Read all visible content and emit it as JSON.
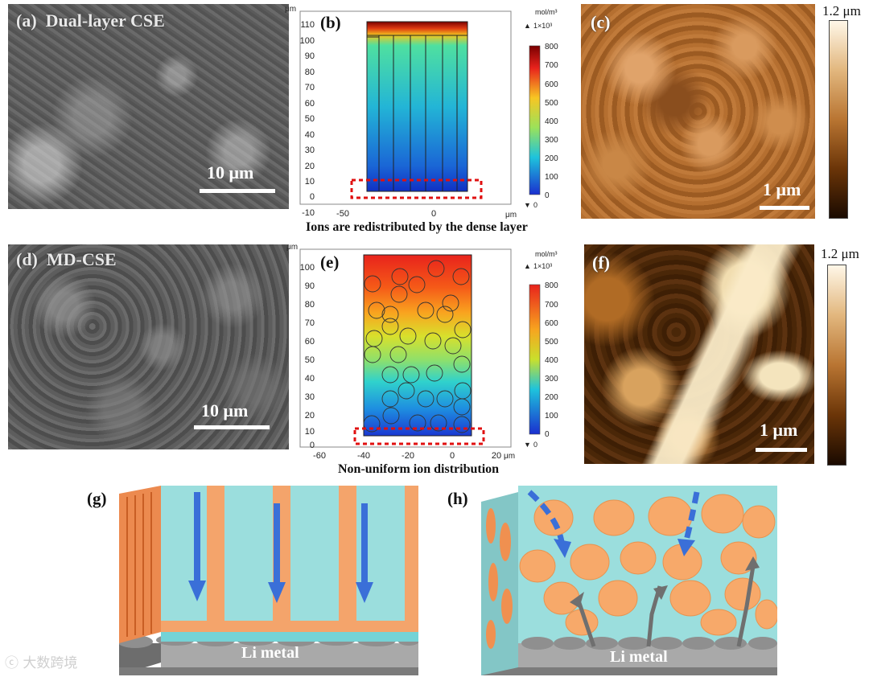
{
  "panels": {
    "a": {
      "label": "(a)",
      "title": "Dual-layer CSE",
      "scale": "10 μm"
    },
    "b": {
      "label": "(b)",
      "caption": "Ions are redistributed by the dense layer",
      "y_unit": "μm",
      "x_unit": "μm",
      "y_ticks": [
        "110",
        "100",
        "90",
        "80",
        "70",
        "60",
        "50",
        "40",
        "30",
        "20",
        "10",
        "0",
        "-10"
      ],
      "x_ticks": [
        "-50",
        "0"
      ],
      "colorbar": {
        "unit": "mol/m³",
        "max_label": "1×10³",
        "min_label": "0",
        "ticks": [
          "800",
          "700",
          "600",
          "500",
          "400",
          "300",
          "200",
          "100",
          "0"
        ]
      }
    },
    "c": {
      "label": "(c)",
      "height_label": "1.2 μm",
      "scale": "1 μm"
    },
    "d": {
      "label": "(d)",
      "title": "MD-CSE",
      "scale": "10 μm"
    },
    "e": {
      "label": "(e)",
      "caption": "Non-uniform ion distribution",
      "y_unit": "μm",
      "x_unit": "μm",
      "y_ticks": [
        "100",
        "90",
        "80",
        "70",
        "60",
        "50",
        "40",
        "30",
        "20",
        "10",
        "0"
      ],
      "x_ticks": [
        "-60",
        "-40",
        "-20",
        "0",
        "20"
      ],
      "colorbar": {
        "unit": "mol/m³",
        "max_label": "1×10³",
        "min_label": "0",
        "ticks": [
          "800",
          "700",
          "600",
          "500",
          "400",
          "300",
          "200",
          "100",
          "0"
        ]
      }
    },
    "f": {
      "label": "(f)",
      "height_label": "1.2 μm",
      "scale": "1 μm"
    },
    "g": {
      "label": "(g)",
      "substrate": "Li metal"
    },
    "h": {
      "label": "(h)",
      "substrate": "Li metal"
    }
  },
  "watermark": "大数跨境",
  "colors": {
    "electrolyte": "#9bdedd",
    "particle": "#f7a96a",
    "arrow": "#3a6fd8",
    "li_metal": "#8a8a8a"
  }
}
